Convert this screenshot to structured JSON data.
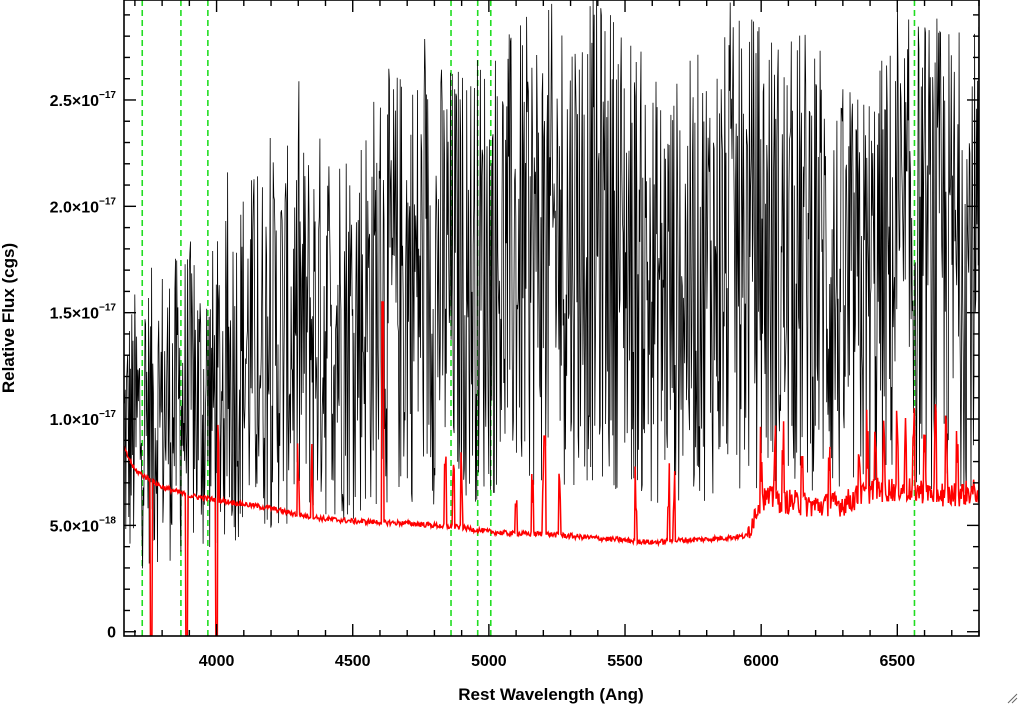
{
  "chart_data": {
    "type": "line",
    "xlabel": "Rest Wavelength (Ang)",
    "ylabel": "Relative Flux (cgs)",
    "xlim": [
      3660,
      6800
    ],
    "ylim": [
      -2e-19,
      2.97e-17
    ],
    "x_ticks": [
      {
        "value": 4000,
        "label": "4000"
      },
      {
        "value": 4500,
        "label": "4500"
      },
      {
        "value": 5000,
        "label": "5000"
      },
      {
        "value": 5500,
        "label": "5500"
      },
      {
        "value": 6000,
        "label": "6000"
      },
      {
        "value": 6500,
        "label": "6500"
      }
    ],
    "y_ticks": [
      {
        "value": 0,
        "mant": "0",
        "exp": ""
      },
      {
        "value": 5e-18,
        "mant": "5.0×10",
        "exp": "−18"
      },
      {
        "value": 1e-17,
        "mant": "1.0×10",
        "exp": "−17"
      },
      {
        "value": 1.5e-17,
        "mant": "1.5×10",
        "exp": "−17"
      },
      {
        "value": 2e-17,
        "mant": "2.0×10",
        "exp": "−17"
      },
      {
        "value": 2.5e-17,
        "mant": "2.5×10",
        "exp": "−17"
      }
    ],
    "grid": false,
    "reference_lines": [
      3727,
      3869,
      3968,
      4861,
      4959,
      5007,
      6563
    ],
    "series": [
      {
        "color": "#000000",
        "style": "noisy spectrum",
        "x": [
          3660,
          3700,
          3750,
          3800,
          3850,
          3900,
          3950,
          4000,
          4050,
          4100,
          4200,
          4300,
          4400,
          4500,
          4600,
          4700,
          4800,
          4900,
          5000,
          5100,
          5200,
          5300,
          5400,
          5500,
          5600,
          5700,
          5800,
          5900,
          6000,
          6100,
          6200,
          6300,
          6400,
          6500,
          6600,
          6700,
          6800
        ],
        "y": [
          9e-18,
          9.5e-18,
          1e-17,
          1.05e-17,
          1.05e-17,
          1.1e-17,
          1.05e-17,
          1.1e-17,
          1.2e-17,
          1.3e-17,
          1.35e-17,
          1.4e-17,
          1.45e-17,
          1.45e-17,
          1.6e-17,
          1.65e-17,
          1.65e-17,
          1.65e-17,
          1.7e-17,
          1.75e-17,
          1.8e-17,
          1.85e-17,
          1.85e-17,
          1.8e-17,
          1.6e-17,
          1.6e-17,
          1.7e-17,
          1.75e-17,
          1.8e-17,
          1.7e-17,
          1.8e-17,
          1.5e-17,
          1.6e-17,
          1.75e-17,
          1.8e-17,
          1.75e-17,
          1.75e-17
        ]
      },
      {
        "color": "#ff0000",
        "style": "smooth spectrum",
        "x": [
          3660,
          3700,
          3750,
          3800,
          3850,
          3900,
          3950,
          4000,
          4100,
          4200,
          4300,
          4400,
          4500,
          4600,
          4700,
          4800,
          4900,
          5000,
          5100,
          5200,
          5300,
          5400,
          5500,
          5600,
          5700,
          5800,
          5900,
          5950,
          6000,
          6100,
          6200,
          6300,
          6400,
          6500,
          6600,
          6700,
          6800
        ],
        "y": [
          8.6e-18,
          7.6e-18,
          7.2e-18,
          6.8e-18,
          6.6e-18,
          6.4e-18,
          6.3e-18,
          6.2e-18,
          6e-18,
          5.8e-18,
          5.5e-18,
          5.3e-18,
          5.2e-18,
          5.15e-18,
          5.1e-18,
          5e-18,
          4.9e-18,
          4.7e-18,
          4.6e-18,
          4.6e-18,
          4.5e-18,
          4.4e-18,
          4.3e-18,
          4.2e-18,
          4.3e-18,
          4.35e-18,
          4.45e-18,
          4.5e-18,
          6.2e-18,
          6e-18,
          5.8e-18,
          5.9e-18,
          6.5e-18,
          6.6e-18,
          6.5e-18,
          6.3e-18,
          6.5e-18
        ]
      }
    ]
  }
}
